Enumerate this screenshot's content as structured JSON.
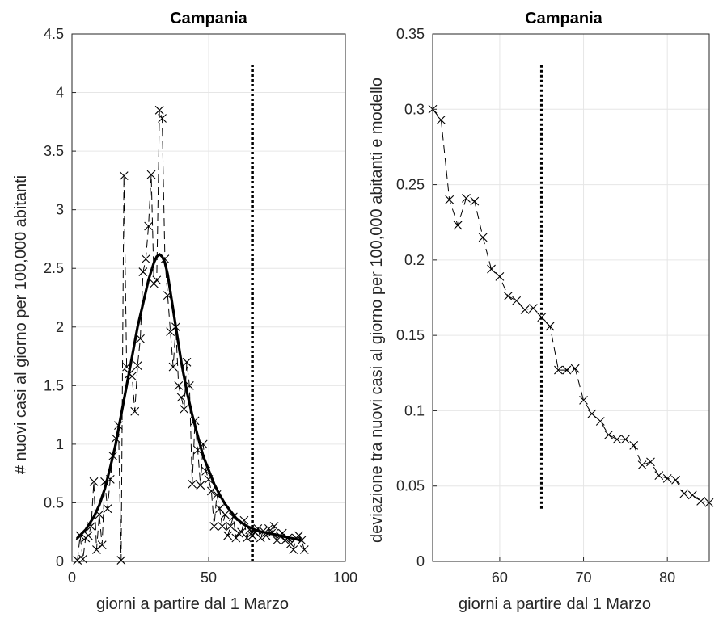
{
  "chart_data": [
    {
      "type": "line",
      "title": "Campania",
      "xlabel": "giorni a partire dal 1 Marzo",
      "ylabel": "# nuovi casi al giorno per 100,000 abitanti",
      "xlim": [
        0,
        100
      ],
      "ylim": [
        0,
        4.5
      ],
      "xticks": [
        0,
        50,
        100
      ],
      "yticks": [
        0,
        0.5,
        1,
        1.5,
        2,
        2.5,
        3,
        3.5,
        4,
        4.5
      ],
      "grid": true,
      "series": [
        {
          "style": "dashed line with x markers",
          "x": [
            2,
            3,
            4,
            5,
            6,
            7,
            8,
            9,
            10,
            11,
            12,
            13,
            14,
            15,
            16,
            17,
            18,
            19,
            20,
            21,
            22,
            23,
            24,
            25,
            26,
            27,
            28,
            29,
            30,
            31,
            32,
            33,
            34,
            35,
            36,
            37,
            38,
            39,
            40,
            41,
            42,
            43,
            44,
            45,
            46,
            47,
            48,
            49,
            50,
            51,
            52,
            53,
            54,
            55,
            56,
            57,
            58,
            59,
            60,
            61,
            62,
            63,
            64,
            65,
            66,
            67,
            68,
            69,
            70,
            71,
            72,
            73,
            74,
            75,
            76,
            77,
            78,
            79,
            80,
            81,
            82,
            83,
            84,
            85
          ],
          "y": [
            0.01,
            0.22,
            0.02,
            0.2,
            0.22,
            0.3,
            0.68,
            0.1,
            0.4,
            0.14,
            0.68,
            0.45,
            0.7,
            0.9,
            1.05,
            1.16,
            0.01,
            3.29,
            1.66,
            1.6,
            1.58,
            1.28,
            1.67,
            1.9,
            2.47,
            2.58,
            2.86,
            3.3,
            2.37,
            2.4,
            3.85,
            3.78,
            2.58,
            2.27,
            1.96,
            1.66,
            2.0,
            1.5,
            1.4,
            1.3,
            1.7,
            1.5,
            0.66,
            1.2,
            0.95,
            0.65,
            1.0,
            0.77,
            0.7,
            0.6,
            0.3,
            0.57,
            0.45,
            0.3,
            0.4,
            0.22,
            0.3,
            0.38,
            0.2,
            0.24,
            0.25,
            0.35,
            0.2,
            0.27,
            0.22,
            0.25,
            0.28,
            0.2,
            0.26,
            0.22,
            0.28,
            0.24,
            0.3,
            0.18,
            0.22,
            0.24,
            0.18,
            0.2,
            0.15,
            0.1,
            0.2,
            0.22,
            0.18,
            0.1
          ]
        },
        {
          "style": "thick solid line (model)",
          "x": [
            2,
            5,
            8,
            10,
            12,
            14,
            16,
            18,
            20,
            22,
            24,
            26,
            28,
            30,
            31,
            32,
            33,
            34,
            35,
            36,
            38,
            40,
            42,
            44,
            46,
            48,
            50,
            52,
            54,
            56,
            58,
            60,
            62,
            64,
            66,
            68,
            70,
            72,
            74,
            76,
            78,
            80,
            82,
            84
          ],
          "y": [
            0.2,
            0.27,
            0.38,
            0.48,
            0.62,
            0.8,
            1.0,
            1.25,
            1.5,
            1.75,
            2.0,
            2.2,
            2.4,
            2.55,
            2.6,
            2.62,
            2.6,
            2.55,
            2.45,
            2.3,
            2.0,
            1.7,
            1.45,
            1.25,
            1.07,
            0.9,
            0.78,
            0.66,
            0.57,
            0.49,
            0.43,
            0.37,
            0.33,
            0.3,
            0.28,
            0.26,
            0.25,
            0.24,
            0.23,
            0.22,
            0.21,
            0.2,
            0.19,
            0.18
          ]
        },
        {
          "style": "dotted vertical line",
          "x": [
            66,
            66
          ],
          "y": [
            0,
            4.25
          ]
        }
      ]
    },
    {
      "type": "line",
      "title": "Campania",
      "xlabel": "giorni a partire dal 1 Marzo",
      "ylabel": "deviazione tra nuovi casi al giorno per 100,000 abitanti e modello",
      "xlim": [
        52,
        85
      ],
      "ylim": [
        0,
        0.35
      ],
      "xticks": [
        60,
        70,
        80
      ],
      "yticks": [
        0,
        0.05,
        0.1,
        0.15,
        0.2,
        0.25,
        0.3,
        0.35
      ],
      "grid": true,
      "series": [
        {
          "style": "dashed line with x markers",
          "x": [
            52,
            53,
            54,
            55,
            56,
            57,
            58,
            59,
            60,
            61,
            62,
            63,
            64,
            65,
            66,
            67,
            68,
            69,
            70,
            71,
            72,
            73,
            74,
            75,
            76,
            77,
            78,
            79,
            80,
            81,
            82,
            83,
            84,
            85
          ],
          "y": [
            0.3,
            0.293,
            0.24,
            0.223,
            0.241,
            0.239,
            0.215,
            0.194,
            0.189,
            0.176,
            0.173,
            0.167,
            0.168,
            0.162,
            0.156,
            0.127,
            0.127,
            0.128,
            0.107,
            0.098,
            0.093,
            0.084,
            0.081,
            0.081,
            0.077,
            0.064,
            0.066,
            0.057,
            0.055,
            0.054,
            0.045,
            0.044,
            0.04,
            0.039
          ]
        },
        {
          "style": "dotted vertical line",
          "x": [
            65,
            65
          ],
          "y": [
            0.035,
            0.33
          ]
        }
      ]
    }
  ]
}
